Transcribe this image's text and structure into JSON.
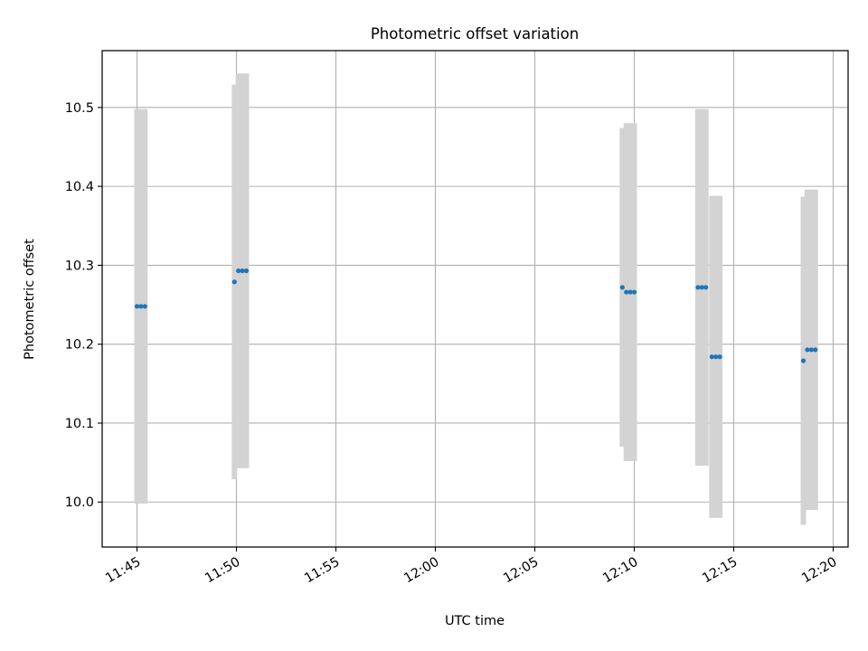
{
  "chart_data": {
    "type": "scatter",
    "title": "Photometric offset variation",
    "xlabel": "UTC time",
    "ylabel": "Photometric offset",
    "grid": true,
    "xlim": [
      "11:43:15",
      "12:20:45"
    ],
    "ylim": [
      9.943,
      10.572
    ],
    "x_ticks": [
      "11:45",
      "11:50",
      "11:55",
      "12:00",
      "12:05",
      "12:10",
      "12:15",
      "12:20"
    ],
    "y_ticks": [
      "10.0",
      "10.1",
      "10.2",
      "10.3",
      "10.4",
      "10.5"
    ],
    "error_bar_color": "#d3d3d3",
    "point_color": "#1f77b4",
    "series": [
      {
        "points": [
          {
            "time": "11:45:00",
            "y": 10.248,
            "err": 0.25
          },
          {
            "time": "11:45:12",
            "y": 10.248,
            "err": 0.25
          },
          {
            "time": "11:45:24",
            "y": 10.248,
            "err": 0.25
          },
          {
            "time": "11:49:54",
            "y": 10.279,
            "err": 0.25
          },
          {
            "time": "11:50:06",
            "y": 10.293,
            "err": 0.25
          },
          {
            "time": "11:50:18",
            "y": 10.293,
            "err": 0.25
          },
          {
            "time": "11:50:30",
            "y": 10.293,
            "err": 0.25
          },
          {
            "time": "12:09:24",
            "y": 10.272,
            "err": 0.202
          },
          {
            "time": "12:09:36",
            "y": 10.266,
            "err": 0.214
          },
          {
            "time": "12:09:48",
            "y": 10.266,
            "err": 0.214
          },
          {
            "time": "12:10:00",
            "y": 10.266,
            "err": 0.214
          },
          {
            "time": "12:13:12",
            "y": 10.272,
            "err": 0.226
          },
          {
            "time": "12:13:24",
            "y": 10.272,
            "err": 0.226
          },
          {
            "time": "12:13:36",
            "y": 10.272,
            "err": 0.226
          },
          {
            "time": "12:13:54",
            "y": 10.184,
            "err": 0.204
          },
          {
            "time": "12:14:06",
            "y": 10.184,
            "err": 0.204
          },
          {
            "time": "12:14:18",
            "y": 10.184,
            "err": 0.204
          },
          {
            "time": "12:18:30",
            "y": 10.179,
            "err": 0.208
          },
          {
            "time": "12:18:42",
            "y": 10.193,
            "err": 0.203
          },
          {
            "time": "12:18:54",
            "y": 10.193,
            "err": 0.203
          },
          {
            "time": "12:19:06",
            "y": 10.193,
            "err": 0.203
          }
        ]
      }
    ]
  }
}
